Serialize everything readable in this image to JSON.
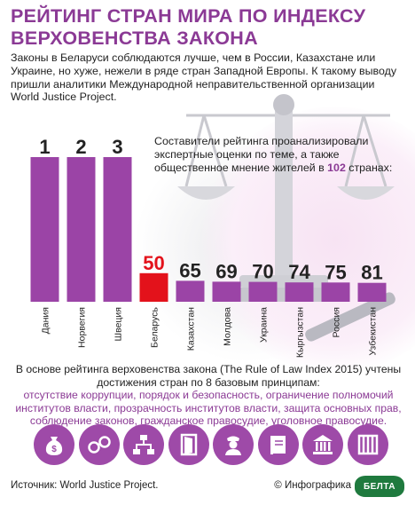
{
  "header": {
    "title_line1": "РЕЙТИНГ СТРАН МИРА ПО ИНДЕКСУ",
    "title_line2": "ВЕРХОВЕНСТВА ЗАКОНА"
  },
  "intro": "Законы в Беларуси соблюдаются лучше, чем в России, Казахстане или Украине, но хуже, нежели в ряде стран Западной Европы. К такому выводу пришли аналитики Международной неправительственной организации World Justice Project.",
  "note": {
    "text_before": "Составители рейтинга проанализировали экспертные оценки по теме, а также общественное мнение жителей в",
    "highlight": "102",
    "text_after": "странах:"
  },
  "chart_data": {
    "type": "bar",
    "categories": [
      "Дания",
      "Норвегия",
      "Швеция",
      "Беларусь",
      "Казахстан",
      "Молдова",
      "Украина",
      "Кыргызстан",
      "Россия",
      "Узбекистан"
    ],
    "values": [
      1,
      2,
      3,
      50,
      65,
      69,
      70,
      74,
      75,
      81
    ],
    "highlight_category": "Беларусь",
    "colors": {
      "bar": "#9b44a6",
      "highlight": "#e3121b",
      "label": "#222222",
      "highlight_label": "#e3121b"
    }
  },
  "basis": "В основе рейтинга верховенства закона (The Rule of Law Index 2015) учтены достижения стран по 8 базовым принципам:",
  "principles": "отсутствие коррупции, порядок и безопасность, ограничение полномочий институтов власти, прозрачность институтов власти, защита основных прав, соблюдение законов, гражданское правосудие, уголовное правосудие.",
  "icons": [
    "money-bag-icon",
    "handcuffs-icon",
    "hierarchy-icon",
    "open-door-icon",
    "police-officer-icon",
    "law-book-icon",
    "courthouse-icon",
    "prison-bars-icon"
  ],
  "footer": {
    "source": "Источник: World Justice Project.",
    "credit": "© Инфографика",
    "logo_text": "БЕЛТА"
  }
}
